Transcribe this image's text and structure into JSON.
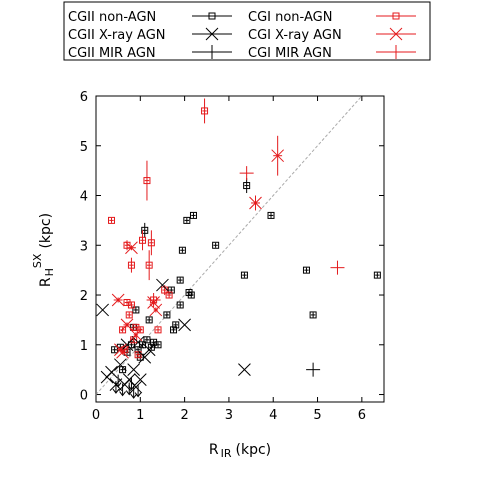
{
  "chart_data": {
    "type": "scatter",
    "title": "",
    "xlabel": {
      "main": "R",
      "sub": "IR",
      "unit": "(kpc)"
    },
    "ylabel": {
      "main": "R",
      "sub": "H",
      "sup": "SX",
      "unit": "(kpc)"
    },
    "xlim": [
      0,
      6.5
    ],
    "ylim": [
      -0.15,
      6
    ],
    "xticks": [
      0,
      1,
      2,
      3,
      4,
      5,
      6
    ],
    "yticks": [
      0,
      1,
      2,
      3,
      4,
      5,
      6
    ],
    "grid": false,
    "legend_position": "top",
    "one_to_one_line": true,
    "colors": {
      "black": "#000000",
      "red": "#e41a1c",
      "diag": "#aaaaaa"
    },
    "series": [
      {
        "name": "CGII non-AGN",
        "marker": "square",
        "color": "#000000",
        "points": [
          {
            "x": 0.42,
            "y": 0.9,
            "ex": 0.05,
            "ey": 0.05
          },
          {
            "x": 0.55,
            "y": 0.95,
            "ex": 0.05,
            "ey": 0.05
          },
          {
            "x": 0.6,
            "y": 0.5,
            "ex": 0.05,
            "ey": 0.05
          },
          {
            "x": 0.7,
            "y": 0.85,
            "ex": 0.05,
            "ey": 0.05
          },
          {
            "x": 0.8,
            "y": 1.0,
            "ex": 0.05,
            "ey": 0.05
          },
          {
            "x": 0.85,
            "y": 1.35,
            "ex": 0.05,
            "ey": 0.05
          },
          {
            "x": 0.9,
            "y": 1.7,
            "ex": 0.05,
            "ey": 0.05
          },
          {
            "x": 0.95,
            "y": 0.9,
            "ex": 0.05,
            "ey": 0.05
          },
          {
            "x": 1.0,
            "y": 0.75,
            "ex": 0.05,
            "ey": 0.05
          },
          {
            "x": 1.05,
            "y": 1.0,
            "ex": 0.05,
            "ey": 0.05
          },
          {
            "x": 1.1,
            "y": 3.3,
            "ex": 0.05,
            "ey": 0.15
          },
          {
            "x": 1.15,
            "y": 1.1,
            "ex": 0.05,
            "ey": 0.05
          },
          {
            "x": 1.2,
            "y": 1.5,
            "ex": 0.05,
            "ey": 0.05
          },
          {
            "x": 1.25,
            "y": 0.95,
            "ex": 0.05,
            "ey": 0.05
          },
          {
            "x": 1.3,
            "y": 1.05,
            "ex": 0.05,
            "ey": 0.05
          },
          {
            "x": 1.4,
            "y": 1.0,
            "ex": 0.05,
            "ey": 0.05
          },
          {
            "x": 1.6,
            "y": 1.6,
            "ex": 0.05,
            "ey": 0.05
          },
          {
            "x": 1.7,
            "y": 2.1,
            "ex": 0.05,
            "ey": 0.05
          },
          {
            "x": 1.75,
            "y": 1.3,
            "ex": 0.05,
            "ey": 0.05
          },
          {
            "x": 1.8,
            "y": 1.4,
            "ex": 0.05,
            "ey": 0.05
          },
          {
            "x": 1.9,
            "y": 2.3,
            "ex": 0.05,
            "ey": 0.05
          },
          {
            "x": 1.95,
            "y": 2.9,
            "ex": 0.05,
            "ey": 0.05
          },
          {
            "x": 2.05,
            "y": 3.5,
            "ex": 0.05,
            "ey": 0.05
          },
          {
            "x": 2.1,
            "y": 2.05,
            "ex": 0.05,
            "ey": 0.05
          },
          {
            "x": 2.15,
            "y": 2.0,
            "ex": 0.05,
            "ey": 0.05
          },
          {
            "x": 2.2,
            "y": 3.6,
            "ex": 0.05,
            "ey": 0.05
          },
          {
            "x": 2.7,
            "y": 3.0,
            "ex": 0.05,
            "ey": 0.05
          },
          {
            "x": 3.35,
            "y": 2.4,
            "ex": 0.05,
            "ey": 0.05
          },
          {
            "x": 3.4,
            "y": 4.2,
            "ex": 0.05,
            "ey": 0.15
          },
          {
            "x": 3.95,
            "y": 3.6,
            "ex": 0.05,
            "ey": 0.05
          },
          {
            "x": 4.75,
            "y": 2.5,
            "ex": 0.05,
            "ey": 0.05
          },
          {
            "x": 4.9,
            "y": 1.6,
            "ex": 0.05,
            "ey": 0.05
          },
          {
            "x": 6.35,
            "y": 2.4,
            "ex": 0.05,
            "ey": 0.05
          },
          {
            "x": 1.9,
            "y": 1.8,
            "ex": 0.05,
            "ey": 0.05
          }
        ]
      },
      {
        "name": "CGI non-AGN",
        "marker": "square",
        "color": "#e41a1c",
        "points": [
          {
            "x": 0.35,
            "y": 3.5,
            "ex": 0.05,
            "ey": 0.05
          },
          {
            "x": 0.6,
            "y": 1.3,
            "ex": 0.05,
            "ey": 0.05
          },
          {
            "x": 0.65,
            "y": 0.9,
            "ex": 0.05,
            "ey": 0.05
          },
          {
            "x": 0.7,
            "y": 1.85,
            "ex": 0.05,
            "ey": 0.05
          },
          {
            "x": 0.7,
            "y": 3.0,
            "ex": 0.05,
            "ey": 0.1
          },
          {
            "x": 0.75,
            "y": 1.6,
            "ex": 0.05,
            "ey": 0.05
          },
          {
            "x": 0.8,
            "y": 1.8,
            "ex": 0.05,
            "ey": 0.05
          },
          {
            "x": 0.8,
            "y": 2.6,
            "ex": 0.05,
            "ey": 0.15
          },
          {
            "x": 0.85,
            "y": 1.1,
            "ex": 0.05,
            "ey": 0.05
          },
          {
            "x": 0.9,
            "y": 1.35,
            "ex": 0.05,
            "ey": 0.05
          },
          {
            "x": 1.0,
            "y": 1.3,
            "ex": 0.05,
            "ey": 0.05
          },
          {
            "x": 1.05,
            "y": 3.1,
            "ex": 0.05,
            "ey": 0.2
          },
          {
            "x": 1.15,
            "y": 4.3,
            "ex": 0.05,
            "ey": 0.4
          },
          {
            "x": 1.2,
            "y": 2.6,
            "ex": 0.05,
            "ey": 0.3
          },
          {
            "x": 1.25,
            "y": 3.05,
            "ex": 0.05,
            "ey": 0.25
          },
          {
            "x": 1.3,
            "y": 1.9,
            "ex": 0.05,
            "ey": 0.05
          },
          {
            "x": 1.4,
            "y": 1.3,
            "ex": 0.05,
            "ey": 0.05
          },
          {
            "x": 1.55,
            "y": 2.1,
            "ex": 0.05,
            "ey": 0.1
          },
          {
            "x": 2.45,
            "y": 5.7,
            "ex": 0.05,
            "ey": 0.25
          },
          {
            "x": 0.95,
            "y": 0.8,
            "ex": 0.05,
            "ey": 0.05
          },
          {
            "x": 1.65,
            "y": 2.0,
            "ex": 0.05,
            "ey": 0.05
          }
        ]
      },
      {
        "name": "CGII X-ray AGN",
        "marker": "x",
        "color": "#000000",
        "points": [
          {
            "x": 0.15,
            "y": 1.7
          },
          {
            "x": 0.25,
            "y": 0.35
          },
          {
            "x": 0.35,
            "y": 0.45
          },
          {
            "x": 0.45,
            "y": 0.2
          },
          {
            "x": 0.55,
            "y": 0.6
          },
          {
            "x": 0.65,
            "y": 0.2
          },
          {
            "x": 0.75,
            "y": 0.3
          },
          {
            "x": 0.85,
            "y": 0.5
          },
          {
            "x": 0.9,
            "y": 0.15
          },
          {
            "x": 1.0,
            "y": 0.3
          },
          {
            "x": 1.1,
            "y": 0.75
          },
          {
            "x": 1.2,
            "y": 0.9
          },
          {
            "x": 1.5,
            "y": 2.2
          },
          {
            "x": 2.0,
            "y": 1.4
          },
          {
            "x": 3.35,
            "y": 0.5
          },
          {
            "x": 0.7,
            "y": 1.0
          },
          {
            "x": 0.95,
            "y": 1.05
          }
        ]
      },
      {
        "name": "CGI X-ray AGN",
        "marker": "x",
        "color": "#e41a1c",
        "points": [
          {
            "x": 0.5,
            "y": 1.9,
            "ex": 0.1,
            "ey": 0.05
          },
          {
            "x": 0.55,
            "y": 0.9,
            "ex": 0.08,
            "ey": 0.05
          },
          {
            "x": 0.6,
            "y": 0.85,
            "ex": 0.05,
            "ey": 0.05
          },
          {
            "x": 0.7,
            "y": 1.4,
            "ex": 0.08,
            "ey": 0.05
          },
          {
            "x": 0.8,
            "y": 2.95,
            "ex": 0.1,
            "ey": 0.05
          },
          {
            "x": 0.9,
            "y": 1.2,
            "ex": 0.05,
            "ey": 0.05
          },
          {
            "x": 1.3,
            "y": 1.85,
            "ex": 0.05,
            "ey": 0.05
          },
          {
            "x": 1.35,
            "y": 1.7,
            "ex": 0.05,
            "ey": 0.05
          },
          {
            "x": 3.6,
            "y": 3.85,
            "ex": 0.1,
            "ey": 0.15
          },
          {
            "x": 4.1,
            "y": 4.8,
            "ex": 0.1,
            "ey": 0.4
          }
        ]
      },
      {
        "name": "CGII MIR AGN",
        "marker": "plus",
        "color": "#000000",
        "points": [
          {
            "x": 4.9,
            "y": 0.5
          }
        ],
        "upper_limits": [
          {
            "x": 0.45,
            "y": 0.15
          },
          {
            "x": 0.6,
            "y": 0.1
          },
          {
            "x": 0.75,
            "y": 0.12
          },
          {
            "x": 0.85,
            "y": 0.05
          },
          {
            "x": 0.95,
            "y": 0.08
          },
          {
            "x": 0.5,
            "y": 0.28
          },
          {
            "x": 0.8,
            "y": 0.22
          }
        ]
      },
      {
        "name": "CGI MIR AGN",
        "marker": "plus",
        "color": "#e41a1c",
        "points": [
          {
            "x": 1.3,
            "y": 1.9
          },
          {
            "x": 3.4,
            "y": 4.45
          },
          {
            "x": 5.45,
            "y": 2.55
          }
        ]
      }
    ]
  }
}
